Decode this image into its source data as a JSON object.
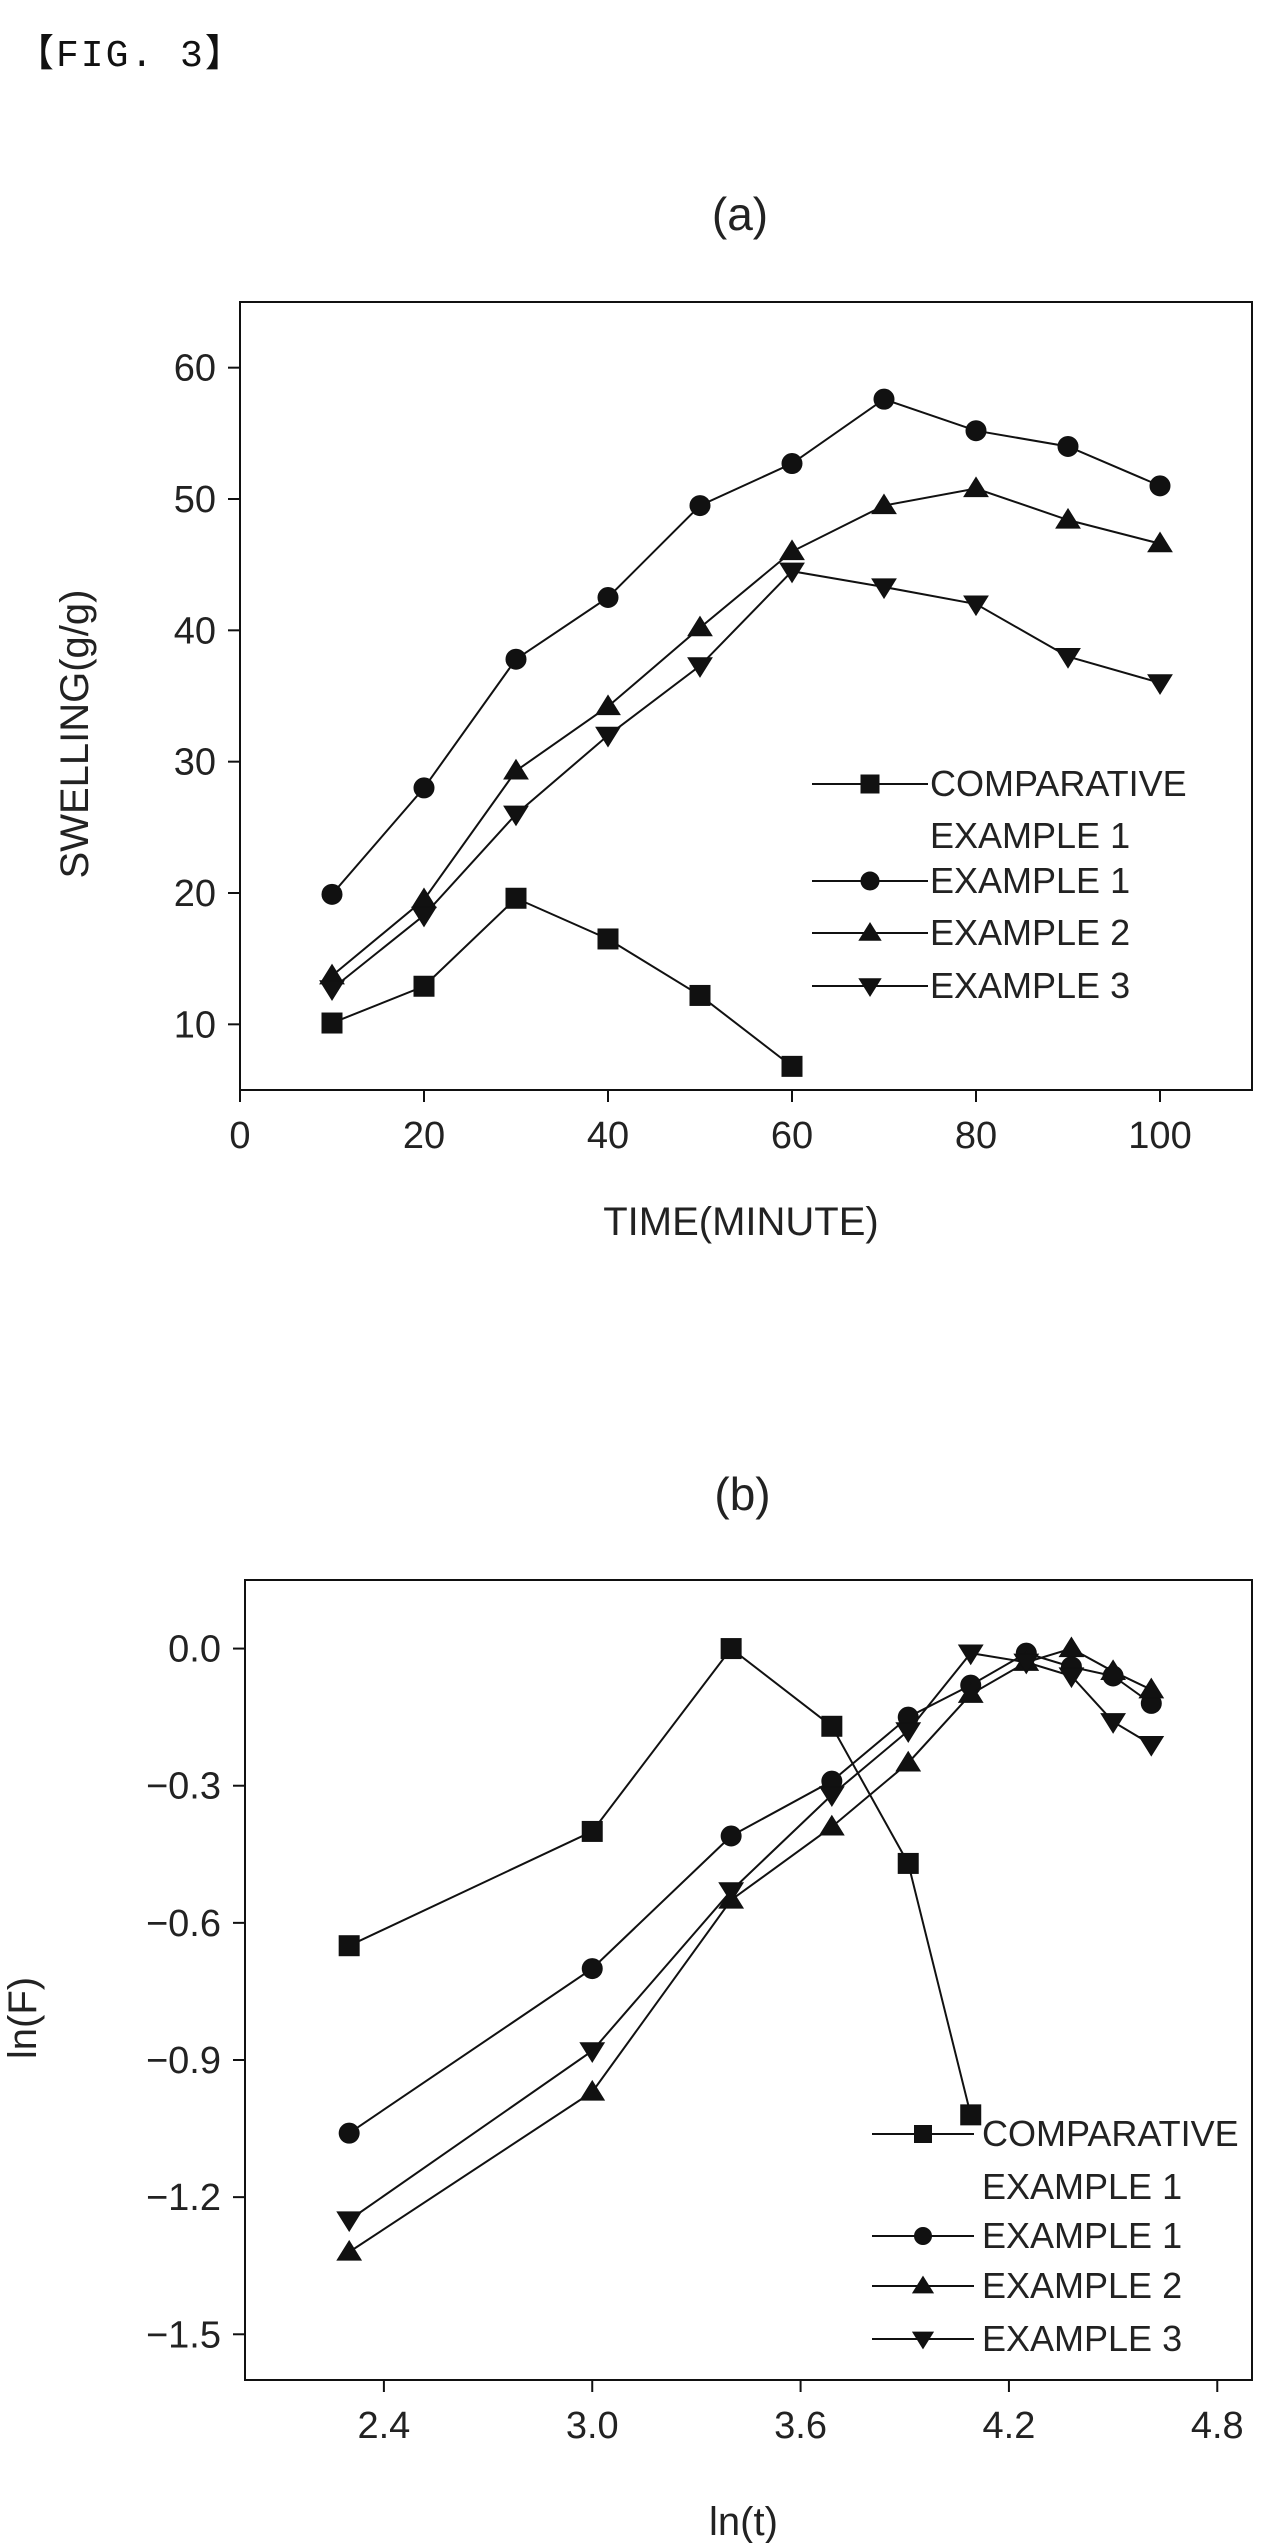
{
  "figure_label": "【FIG. 3】",
  "chart_data": [
    {
      "type": "line",
      "title": "(a)",
      "xlabel": "TIME(MINUTE)",
      "ylabel": "SWELLING(g/g)",
      "xlim": [
        0,
        110
      ],
      "ylim": [
        5,
        65
      ],
      "xticks": [
        0,
        20,
        40,
        60,
        80,
        100
      ],
      "yticks": [
        10,
        20,
        30,
        40,
        50,
        60
      ],
      "xtick_labels": [
        "0",
        "20",
        "40",
        "60",
        "80",
        "100"
      ],
      "ytick_labels": [
        "10",
        "20",
        "30",
        "40",
        "50",
        "60"
      ],
      "legend_placement": "lower-right",
      "series": [
        {
          "name": [
            "COMPARATIVE",
            "EXAMPLE 1"
          ],
          "marker": "square",
          "x": [
            10,
            20,
            30,
            40,
            50,
            60
          ],
          "y": [
            10.1,
            12.9,
            19.6,
            16.5,
            12.2,
            6.8
          ]
        },
        {
          "name": [
            "EXAMPLE 1"
          ],
          "marker": "circle",
          "x": [
            10,
            20,
            30,
            40,
            50,
            60,
            70,
            80,
            90,
            100
          ],
          "y": [
            19.9,
            28.0,
            37.8,
            42.5,
            49.5,
            52.7,
            57.6,
            55.2,
            54.0,
            51.0
          ]
        },
        {
          "name": [
            "EXAMPLE 2"
          ],
          "marker": "triangle-up",
          "x": [
            10,
            20,
            30,
            40,
            50,
            60,
            70,
            80,
            90,
            100
          ],
          "y": [
            13.7,
            19.5,
            29.3,
            34.2,
            40.2,
            46.0,
            49.5,
            50.8,
            48.4,
            46.6
          ]
        },
        {
          "name": [
            "EXAMPLE 3"
          ],
          "marker": "triangle-down",
          "x": [
            10,
            20,
            30,
            40,
            50,
            60,
            70,
            80,
            90,
            100
          ],
          "y": [
            12.7,
            18.3,
            26.0,
            32.0,
            37.3,
            44.5,
            43.3,
            42.0,
            38.0,
            36.0
          ]
        }
      ]
    },
    {
      "type": "line",
      "title": "(b)",
      "xlabel": "ln(t)",
      "ylabel": "ln(F)",
      "xlim": [
        2.0,
        4.9
      ],
      "ylim": [
        -1.6,
        0.15
      ],
      "xticks": [
        2.4,
        3.0,
        3.6,
        4.2,
        4.8
      ],
      "yticks": [
        0.0,
        -0.3,
        -0.6,
        -0.9,
        -1.2,
        -1.5
      ],
      "xtick_labels": [
        "2.4",
        "3.0",
        "3.6",
        "4.2",
        "4.8"
      ],
      "ytick_labels": [
        "0.0",
        "-0.3",
        "-0.6",
        "-0.9",
        "-1.2",
        "-1.5"
      ],
      "legend_placement": "lower-right",
      "series": [
        {
          "name": [
            "COMPARATIVE",
            "EXAMPLE 1"
          ],
          "marker": "square",
          "x": [
            2.3,
            3.0,
            3.4,
            3.69,
            3.91,
            4.09
          ],
          "y": [
            -0.65,
            -0.4,
            0.0,
            -0.17,
            -0.47,
            -1.02
          ]
        },
        {
          "name": [
            "EXAMPLE 1"
          ],
          "marker": "circle",
          "x": [
            2.3,
            3.0,
            3.4,
            3.69,
            3.91,
            4.09,
            4.25,
            4.38,
            4.5,
            4.61
          ],
          "y": [
            -1.06,
            -0.7,
            -0.41,
            -0.29,
            -0.15,
            -0.08,
            -0.01,
            -0.04,
            -0.06,
            -0.12
          ]
        },
        {
          "name": [
            "EXAMPLE 2"
          ],
          "marker": "triangle-up",
          "x": [
            2.3,
            3.0,
            3.4,
            3.69,
            3.91,
            4.09,
            4.25,
            4.38,
            4.5,
            4.61
          ],
          "y": [
            -1.32,
            -0.97,
            -0.55,
            -0.39,
            -0.25,
            -0.1,
            -0.03,
            0.0,
            -0.05,
            -0.09
          ]
        },
        {
          "name": [
            "EXAMPLE 3"
          ],
          "marker": "triangle-down",
          "x": [
            2.3,
            3.0,
            3.4,
            3.69,
            3.91,
            4.09,
            4.25,
            4.38,
            4.5,
            4.61
          ],
          "y": [
            -1.25,
            -0.88,
            -0.53,
            -0.32,
            -0.18,
            -0.01,
            -0.03,
            -0.06,
            -0.16,
            -0.21
          ]
        }
      ]
    }
  ]
}
